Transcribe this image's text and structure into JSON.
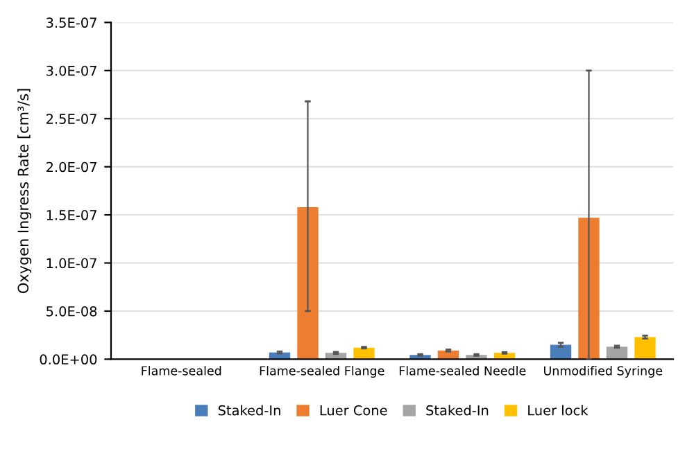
{
  "chart_data": {
    "type": "bar",
    "ylabel": "Oxygen Ingress Rate [cm³/s]",
    "categories": [
      "Flame-sealed",
      "Flame-sealed Flange",
      "Flame-sealed Needle",
      "Unmodified Syringe"
    ],
    "series": [
      {
        "name": "Staked-In",
        "color": "#4a7ebb",
        "values": [
          0,
          7e-09,
          4.5e-09,
          1.5e-08
        ],
        "errors": [
          null,
          1e-09,
          8e-10,
          2e-09
        ]
      },
      {
        "name": "Luer Cone",
        "color": "#ed7d31",
        "values": [
          0,
          1.58e-07,
          9e-09,
          1.47e-07
        ],
        "errors": [
          null,
          [
            5e-08,
            2.68e-07
          ],
          1e-09,
          [
            0,
            3e-07
          ]
        ]
      },
      {
        "name": "Staked-In",
        "color": "#a5a5a5",
        "values": [
          0,
          6.5e-09,
          4.5e-09,
          1.3e-08
        ],
        "errors": [
          null,
          1e-09,
          8e-10,
          1e-09
        ]
      },
      {
        "name": "Luer lock",
        "color": "#ffc000",
        "values": [
          0,
          1.2e-08,
          6.5e-09,
          2.3e-08
        ],
        "errors": [
          null,
          8e-10,
          8e-10,
          1.5e-09
        ]
      }
    ],
    "ylim": [
      0,
      3.5e-07
    ],
    "yticks": [
      {
        "value": 0,
        "label": "0.0E+00"
      },
      {
        "value": 5e-08,
        "label": "5.0E-08"
      },
      {
        "value": 1e-07,
        "label": "1.0E-07"
      },
      {
        "value": 1.5e-07,
        "label": "1.5E-07"
      },
      {
        "value": 2e-07,
        "label": "2.0E-07"
      },
      {
        "value": 2.5e-07,
        "label": "2.5E-07"
      },
      {
        "value": 3e-07,
        "label": "3.0E-07"
      },
      {
        "value": 3.5e-07,
        "label": "3.5E-07"
      }
    ],
    "grid": "y",
    "legend": "bottom"
  }
}
